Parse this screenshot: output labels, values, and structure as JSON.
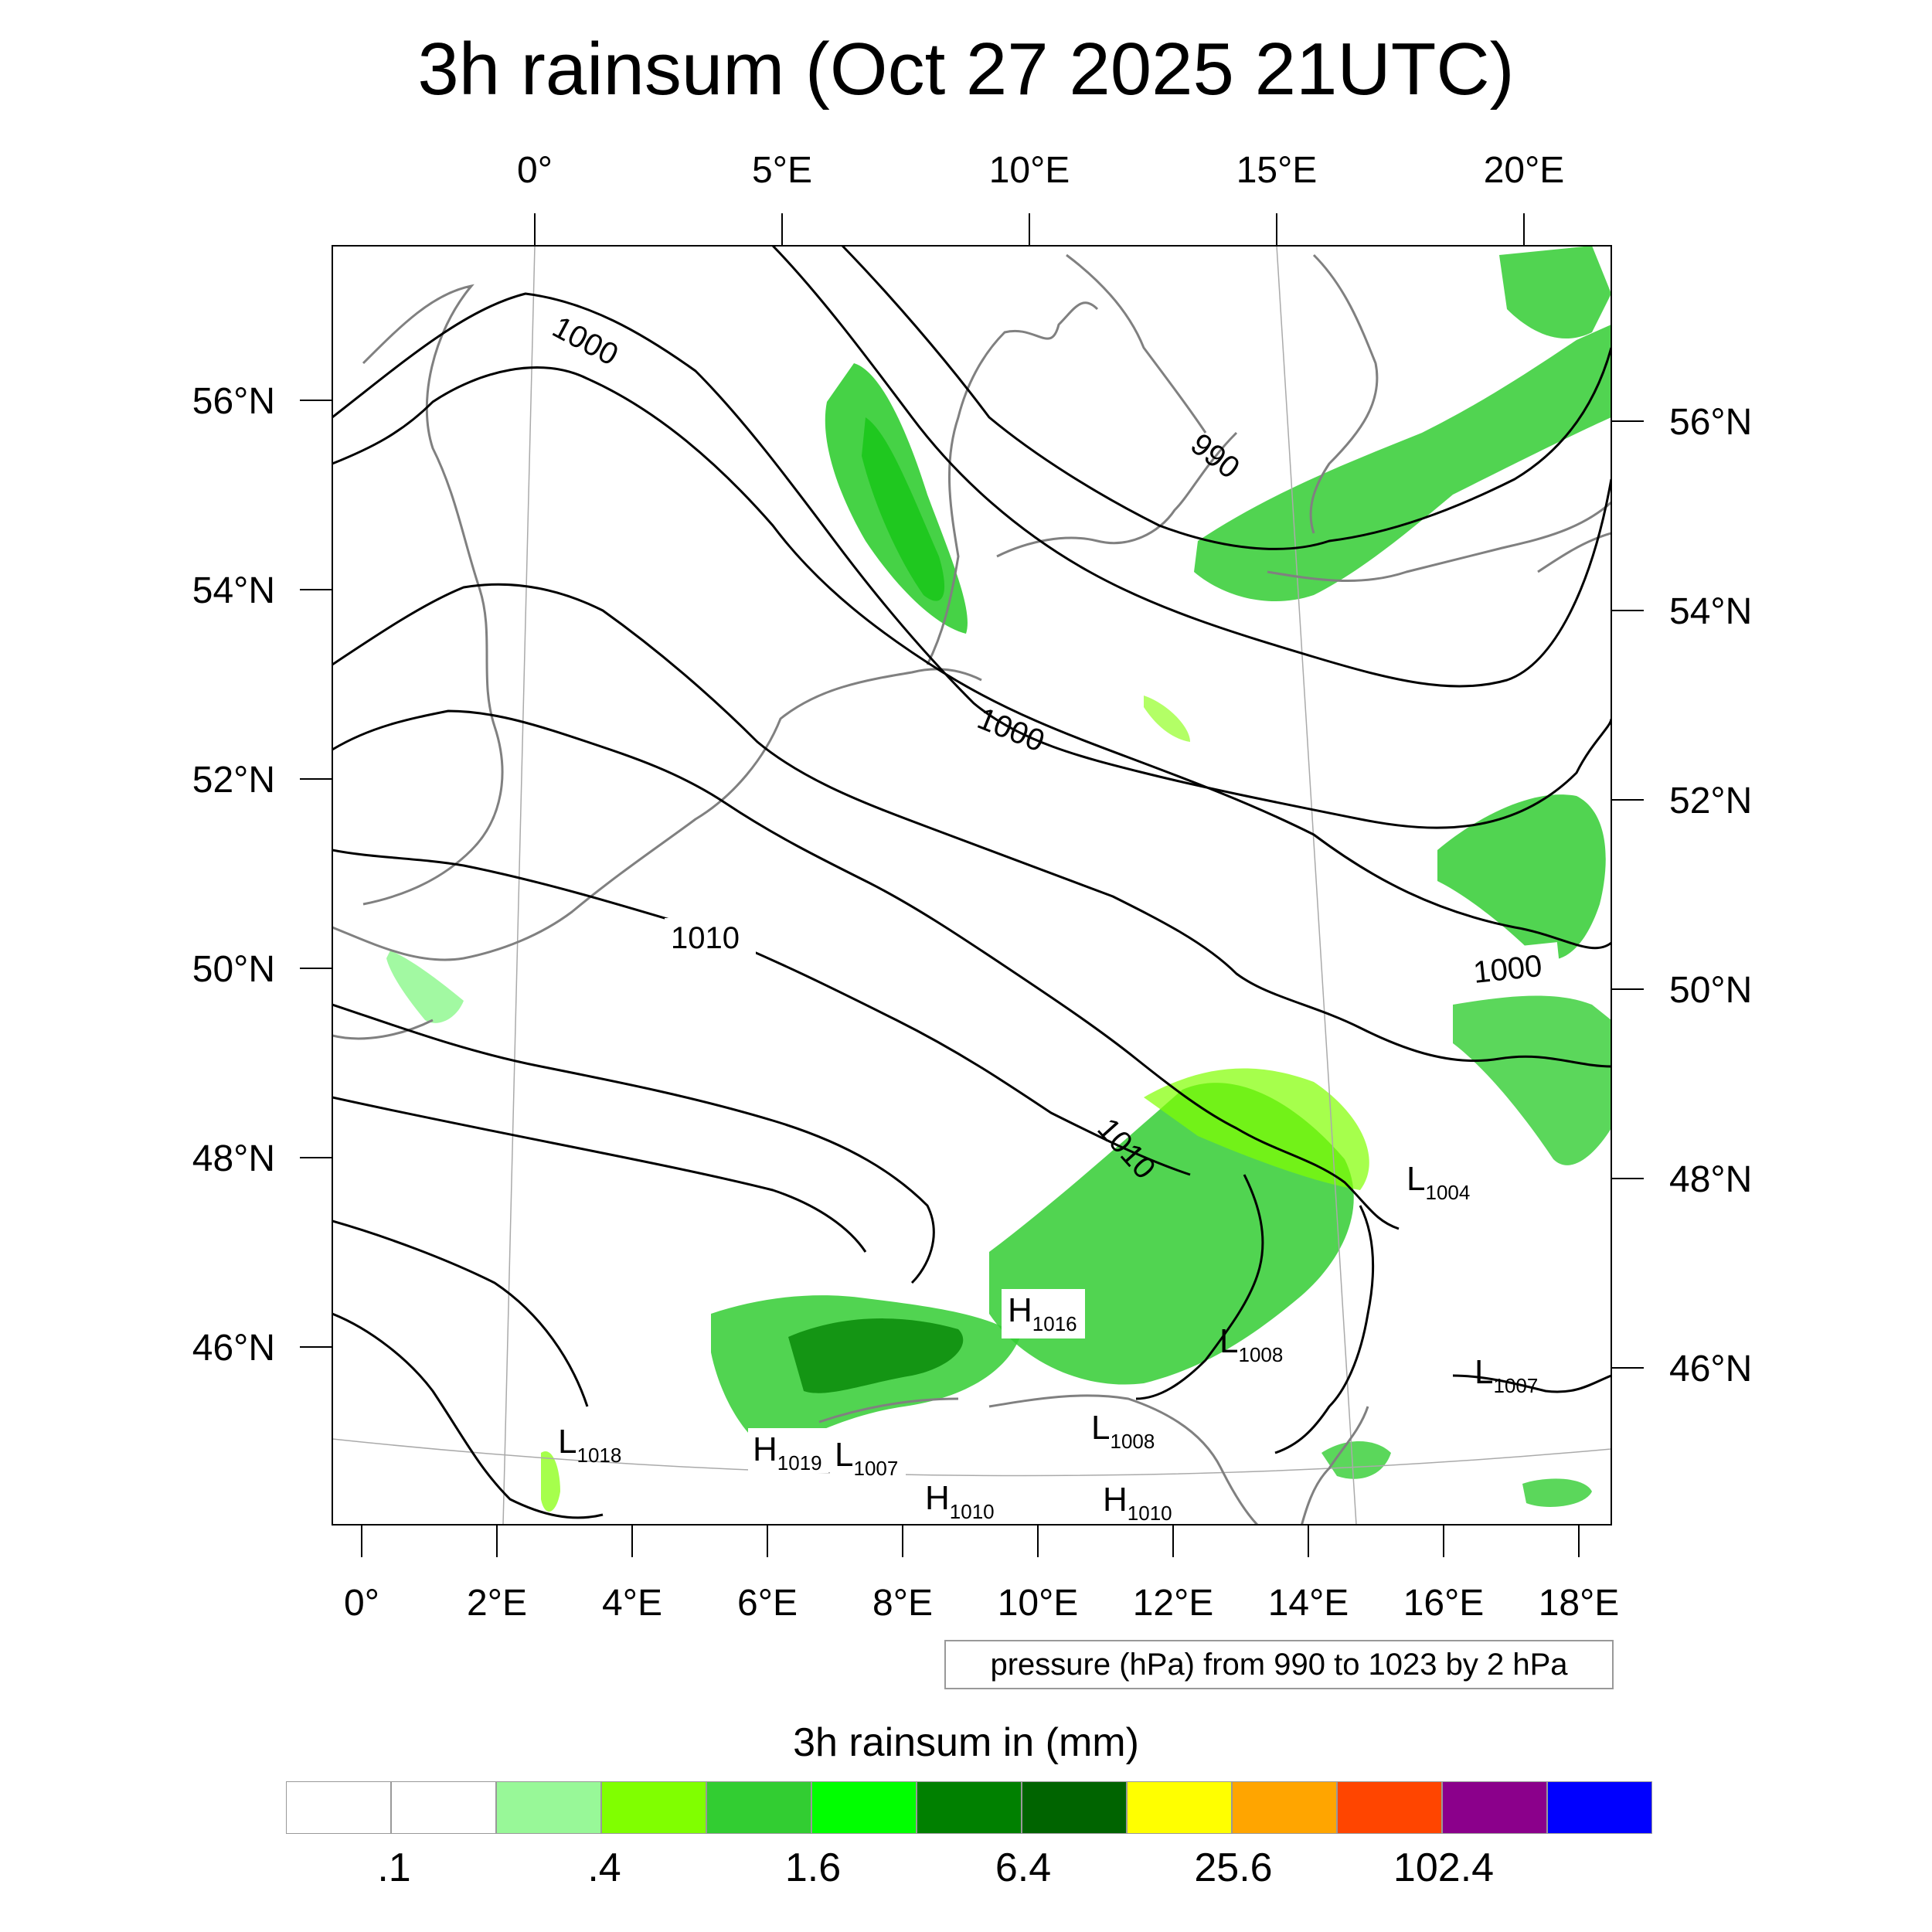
{
  "title": "3h rainsum (Oct 27 2025 21UTC)",
  "top_lon_labels": [
    "0°",
    "5°E",
    "10°E",
    "15°E",
    "20°E"
  ],
  "left_lat_labels": [
    "56°N",
    "54°N",
    "52°N",
    "50°N",
    "48°N",
    "46°N"
  ],
  "right_lat_labels": [
    "56°N",
    "54°N",
    "52°N",
    "50°N",
    "48°N",
    "46°N"
  ],
  "bottom_lon_labels": [
    "0°",
    "2°E",
    "4°E",
    "6°E",
    "8°E",
    "10°E",
    "12°E",
    "14°E",
    "16°E",
    "18°E"
  ],
  "isobar_labels": [
    "1000",
    "990",
    "1000",
    "1010",
    "1010",
    "1000"
  ],
  "pressure_centers": [
    {
      "type": "L",
      "value": "1004"
    },
    {
      "type": "H",
      "value": "1016"
    },
    {
      "type": "L",
      "value": "1008"
    },
    {
      "type": "L",
      "value": "1007"
    },
    {
      "type": "L",
      "value": "1018"
    },
    {
      "type": "L",
      "value": "1008"
    },
    {
      "type": "H",
      "value": "1019"
    },
    {
      "type": "L",
      "value": "1007"
    },
    {
      "type": "H",
      "value": "1010"
    },
    {
      "type": "H",
      "value": "1010"
    }
  ],
  "contour_info": "pressure (hPa) from 990 to 1023 by 2 hPa",
  "colorbar": {
    "title": "3h rainsum in (mm)",
    "colors": [
      "#ffffff",
      "#ffffff",
      "#98f898",
      "#80ff00",
      "#32cd32",
      "#00ff00",
      "#008000",
      "#006400",
      "#ffff00",
      "#ffa500",
      "#ff4500",
      "#8b008b",
      "#0000ff"
    ],
    "tick_labels": [
      ".1",
      ".4",
      "1.6",
      "6.4",
      "25.6",
      "102.4"
    ]
  }
}
